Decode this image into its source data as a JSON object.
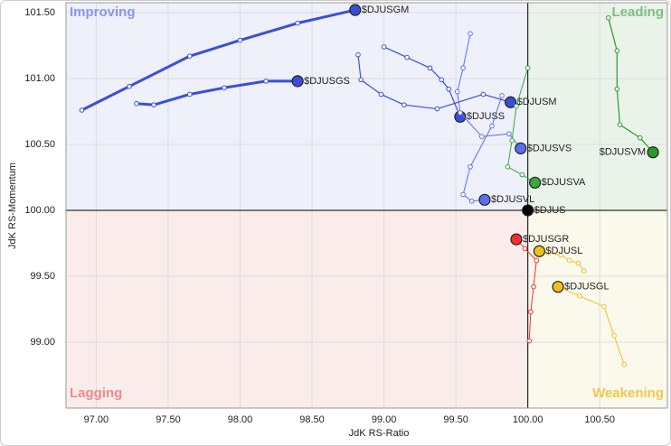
{
  "chart_data": {
    "type": "rrg",
    "x_label": "JdK RS-Ratio",
    "y_label": "JdK RS-Momentum",
    "xlim": [
      96.79,
      100.97
    ],
    "ylim": [
      98.5,
      101.575
    ],
    "origin": [
      100,
      100
    ],
    "xticks": [
      {
        "value": 97,
        "label": "97.00"
      },
      {
        "value": 97.5,
        "label": "97.50"
      },
      {
        "value": 98,
        "label": "98.00"
      },
      {
        "value": 98.5,
        "label": "98.50"
      },
      {
        "value": 99,
        "label": "99.00"
      },
      {
        "value": 99.5,
        "label": "99.50"
      },
      {
        "value": 100,
        "label": "100.00"
      },
      {
        "value": 100.5,
        "label": "100.50"
      }
    ],
    "yticks": [
      {
        "value": 99,
        "label": "99.00"
      },
      {
        "value": 99.5,
        "label": "99.50"
      },
      {
        "value": 100,
        "label": "100.00"
      },
      {
        "value": 100.5,
        "label": "100.50"
      },
      {
        "value": 101,
        "label": "101.00"
      },
      {
        "value": 101.5,
        "label": "101.50"
      }
    ],
    "grid": true,
    "quadrants": [
      {
        "label": "Improving",
        "corner": "top-left",
        "color": "#8a95e8",
        "background": "#eef0fa"
      },
      {
        "label": "Leading",
        "corner": "top-right",
        "color": "#7fbf7f",
        "background": "#eaf3ea"
      },
      {
        "label": "Lagging",
        "corner": "bottom-left",
        "color": "#f08a8a",
        "background": "#fbecec"
      },
      {
        "label": "Weakening",
        "corner": "bottom-right",
        "color": "#f0c84a",
        "background": "#fbf8ec"
      }
    ],
    "series": [
      {
        "name": "$DJUSGM",
        "color": "#3a4fd8",
        "line_width": 3,
        "x": [
          96.9,
          97.23,
          97.65,
          98.0,
          98.4,
          98.8
        ],
        "y": [
          100.76,
          100.94,
          101.17,
          101.29,
          101.42,
          101.52
        ]
      },
      {
        "name": "$DJUSGS",
        "color": "#3a4fd8",
        "line_width": 3,
        "x": [
          97.28,
          97.4,
          97.65,
          97.89,
          98.18,
          98.4
        ],
        "y": [
          100.81,
          100.8,
          100.88,
          100.93,
          100.98,
          100.98
        ]
      },
      {
        "name": "$DJUSM",
        "color": "#3a4fd8",
        "line_width": 1.2,
        "x": [
          98.82,
          98.84,
          98.98,
          99.14,
          99.37,
          99.69,
          99.88
        ],
        "y": [
          101.18,
          100.99,
          100.88,
          100.8,
          100.77,
          100.88,
          100.82
        ]
      },
      {
        "name": "$DJUSS",
        "color": "#3a4fd8",
        "line_width": 1.2,
        "x": [
          99.0,
          99.16,
          99.32,
          99.4,
          99.45,
          99.53
        ],
        "y": [
          101.24,
          101.16,
          101.08,
          100.99,
          100.92,
          100.71
        ]
      },
      {
        "name": "$DJUSVS",
        "color": "#5a6ff0",
        "line_width": 1,
        "x": [
          99.6,
          99.55,
          99.51,
          99.53,
          99.68,
          99.87,
          99.95
        ],
        "y": [
          101.34,
          101.08,
          100.9,
          100.74,
          100.56,
          100.58,
          100.47
        ]
      },
      {
        "name": "$DJUSVL",
        "color": "#5a6ff0",
        "line_width": 1,
        "x": [
          99.82,
          99.75,
          99.6,
          99.55,
          99.61,
          99.7
        ],
        "y": [
          100.87,
          100.64,
          100.33,
          100.12,
          100.07,
          100.08
        ]
      },
      {
        "name": "$DJUSVA",
        "color": "#3aa83a",
        "line_width": 1,
        "x": [
          100.0,
          99.92,
          99.89,
          99.86,
          99.96,
          100.05
        ],
        "y": [
          101.08,
          100.79,
          100.53,
          100.33,
          100.27,
          100.21
        ]
      },
      {
        "name": "$DJUSVM",
        "color": "#2a9a2a",
        "line_width": 1.2,
        "x": [
          100.56,
          100.62,
          100.62,
          100.64,
          100.78,
          100.87
        ],
        "y": [
          101.46,
          101.21,
          100.92,
          100.65,
          100.55,
          100.44
        ]
      },
      {
        "name": "$DJUS",
        "color": "#000000",
        "line_width": 1,
        "x": [
          100.0
        ],
        "y": [
          100.0
        ]
      },
      {
        "name": "$DJUSGR",
        "color": "#f03030",
        "line_width": 1,
        "x": [
          100.01,
          100.02,
          100.04,
          100.06,
          99.98,
          99.92
        ],
        "y": [
          99.01,
          99.23,
          99.42,
          99.62,
          99.71,
          99.78
        ]
      },
      {
        "name": "$DJUSL",
        "color": "#f0c020",
        "line_width": 1,
        "x": [
          100.39,
          100.35,
          100.29,
          100.23,
          100.14,
          100.08
        ],
        "y": [
          99.54,
          99.6,
          99.62,
          99.66,
          99.68,
          99.69
        ]
      },
      {
        "name": "$DJUSGL",
        "color": "#f0c020",
        "line_width": 1,
        "x": [
          100.67,
          100.6,
          100.53,
          100.36,
          100.21
        ],
        "y": [
          98.83,
          99.05,
          99.27,
          99.35,
          99.42
        ]
      }
    ]
  }
}
